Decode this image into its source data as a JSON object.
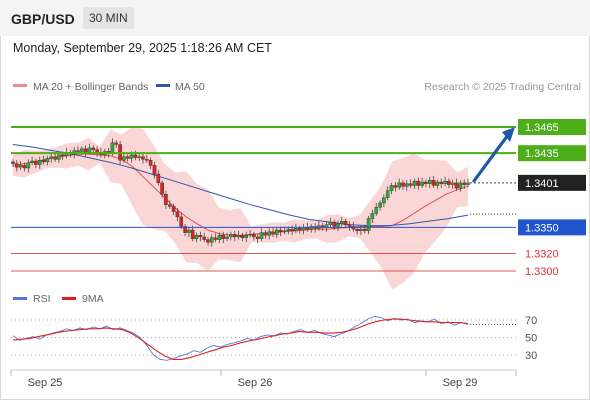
{
  "header": {
    "pair": "GBP/USD",
    "timeframe": "30 MIN"
  },
  "datetime": "Monday, September 29, 2025 1:18:26 AM CET",
  "legend": {
    "ma20": "MA 20 + Bollinger Bands",
    "ma50": "MA 50",
    "credit": "Research © 2025 Trading Central"
  },
  "rsi_legend": {
    "rsi": "RSI",
    "ma": "9MA"
  },
  "colors": {
    "resistance": "#4caf1a",
    "current": "#222222",
    "pivot": "#2255cc",
    "support": "#e03030",
    "ma20": "#e05050",
    "ma50": "#3355aa",
    "band": "#f9c8c8",
    "bull": "#33aa33",
    "bear": "#dd2222",
    "arrow": "#1f5aa8",
    "rsi_line": "#5577dd",
    "rsi_ma": "#dd2222"
  },
  "chart_data": [
    {
      "type": "candlestick",
      "title": "GBP/USD",
      "timeframe": "30 MIN",
      "x_ticks": [
        "Sep 25",
        "Sep 26",
        "Sep 29"
      ],
      "levels": [
        {
          "value": 1.3465,
          "label": "1.3465",
          "kind": "resistance"
        },
        {
          "value": 1.3435,
          "label": "1.3435",
          "kind": "resistance"
        },
        {
          "value": 1.3401,
          "label": "1.3401",
          "kind": "current"
        },
        {
          "value": 1.335,
          "label": "1.3350",
          "kind": "pivot"
        },
        {
          "value": 1.332,
          "label": "1.3320",
          "kind": "support"
        },
        {
          "value": 1.33,
          "label": "1.3300",
          "kind": "support"
        }
      ],
      "close": [
        1.3423,
        1.3419,
        1.3421,
        1.3418,
        1.3424,
        1.3426,
        1.3422,
        1.3427,
        1.3425,
        1.3429,
        1.3431,
        1.3428,
        1.3433,
        1.3432,
        1.3436,
        1.3434,
        1.3438,
        1.3437,
        1.344,
        1.3436,
        1.3441,
        1.3439,
        1.3436,
        1.3433,
        1.3437,
        1.3435,
        1.3447,
        1.3445,
        1.3427,
        1.3431,
        1.3429,
        1.3433,
        1.343,
        1.3431,
        1.3428,
        1.3427,
        1.3421,
        1.3411,
        1.3401,
        1.3388,
        1.3376,
        1.3374,
        1.3368,
        1.3362,
        1.3351,
        1.3344,
        1.3347,
        1.3337,
        1.3341,
        1.3339,
        1.3336,
        1.3333,
        1.3338,
        1.3336,
        1.3341,
        1.3337,
        1.3339,
        1.3342,
        1.3339,
        1.3341,
        1.3338,
        1.3341,
        1.3342,
        1.3339,
        1.3337,
        1.3344,
        1.3341,
        1.3345,
        1.3342,
        1.3347,
        1.3345,
        1.3346,
        1.3348,
        1.3346,
        1.3349,
        1.3347,
        1.335,
        1.3348,
        1.3351,
        1.3349,
        1.3352,
        1.335,
        1.3353,
        1.3356,
        1.3351,
        1.3354,
        1.3357,
        1.3353,
        1.3351,
        1.3348,
        1.3346,
        1.3348,
        1.3346,
        1.336,
        1.3366,
        1.3373,
        1.3378,
        1.3384,
        1.3392,
        1.3398,
        1.3396,
        1.3401,
        1.3397,
        1.34,
        1.3398,
        1.3403,
        1.3398,
        1.3402,
        1.34,
        1.3404,
        1.3398,
        1.3402,
        1.34,
        1.3403,
        1.3399,
        1.3401,
        1.3395,
        1.3401,
        1.3399,
        1.3401
      ],
      "ma20": [
        1.3421,
        1.3423,
        1.3425,
        1.3428,
        1.343,
        1.3432,
        1.3434,
        1.3434,
        1.3433,
        1.3432,
        1.3428,
        1.342,
        1.3408,
        1.3396,
        1.3384,
        1.3372,
        1.3362,
        1.3354,
        1.3347,
        1.3343,
        1.3341,
        1.3341,
        1.3342,
        1.3343,
        1.3344,
        1.3345,
        1.3346,
        1.3347,
        1.3348,
        1.3348,
        1.3349,
        1.335,
        1.3351,
        1.3351,
        1.3351,
        1.3352,
        1.3358,
        1.3366,
        1.3374,
        1.3381,
        1.3388,
        1.3393,
        1.3397
      ],
      "ma50": [
        1.3445,
        1.3442,
        1.3438,
        1.3434,
        1.3429,
        1.3424,
        1.3418,
        1.3411,
        1.3404,
        1.3397,
        1.339,
        1.3383,
        1.3376,
        1.337,
        1.3364,
        1.3359,
        1.3356,
        1.3353,
        1.3352,
        1.3352,
        1.3354,
        1.3357,
        1.336,
        1.3364
      ],
      "forecast": {
        "from": 1.3401,
        "to": 1.3465,
        "direction": "up"
      }
    },
    {
      "type": "line",
      "title": "RSI",
      "y_ticks": [
        70,
        50,
        30
      ],
      "ylim": [
        20,
        80
      ],
      "series": [
        {
          "name": "RSI",
          "values": [
            52,
            47,
            49,
            51,
            48,
            53,
            55,
            57,
            60,
            58,
            61,
            59,
            62,
            60,
            63,
            59,
            61,
            58,
            55,
            50,
            41,
            30,
            25,
            24,
            26,
            29,
            31,
            35,
            33,
            38,
            41,
            39,
            42,
            44,
            46,
            49,
            47,
            51,
            53,
            52,
            55,
            54,
            57,
            59,
            56,
            58,
            55,
            53,
            51,
            54,
            57,
            62,
            66,
            71,
            74,
            73,
            69,
            72,
            70,
            71,
            67,
            69,
            68,
            71,
            66,
            68,
            64,
            67,
            65
          ]
        },
        {
          "name": "9MA",
          "values": [
            47,
            48,
            49,
            51,
            53,
            55,
            57,
            58,
            59,
            60,
            60,
            61,
            60,
            59,
            55,
            49,
            42,
            35,
            29,
            25,
            25,
            27,
            30,
            33,
            36,
            39,
            41,
            44,
            46,
            48,
            50,
            52,
            54,
            55,
            57,
            56,
            56,
            55,
            55,
            56,
            58,
            61,
            65,
            68,
            70,
            71,
            71,
            70,
            69,
            68,
            68,
            67,
            67,
            67,
            66
          ]
        }
      ]
    }
  ]
}
